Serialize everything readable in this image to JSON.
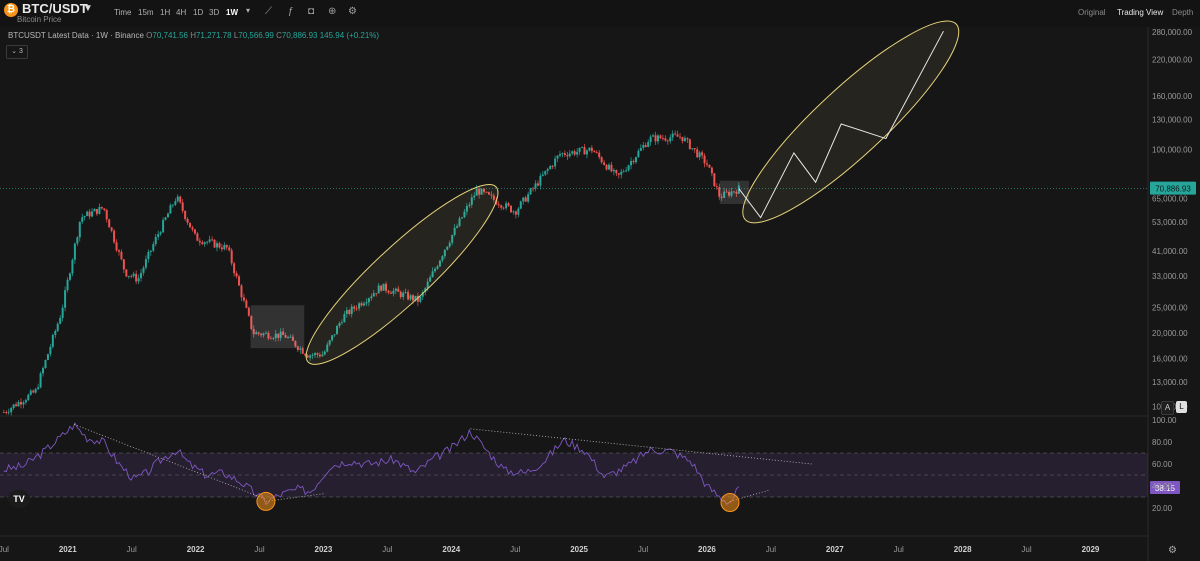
{
  "header": {
    "symbol": "BTC/USDT",
    "subtitle": "Bitcoin Price",
    "timeframes": [
      "Time",
      "15m",
      "1H",
      "4H",
      "1D",
      "3D",
      "1W"
    ],
    "active_timeframe": "1W",
    "views": [
      "Original",
      "Trading View",
      "Depth"
    ],
    "active_view": "Trading View",
    "icons": [
      "chart-type-icon",
      "indicator-icon",
      "screenshot-icon",
      "add-icon",
      "settings-icon"
    ]
  },
  "legend": {
    "label": "BTCUSDT Latest Data · 1W · Binance",
    "open_lbl": "O",
    "open": "70,741.56",
    "high_lbl": "H",
    "high": "71,271.78",
    "low_lbl": "L",
    "low": "70,566.99",
    "close_lbl": "C",
    "close": "70,886.93",
    "change": "145.94 (+0.21%)",
    "collapse_count": "3"
  },
  "chart_data": [
    {
      "type": "candlestick",
      "scale": "log",
      "price_ticks": [
        "280,000.00",
        "220,000.00",
        "160,000.00",
        "130,000.00",
        "100,000.00",
        "65,000.00",
        "53,000.00",
        "41,000.00",
        "33,000.00",
        "25,000.00",
        "20,000.00",
        "16,000.00",
        "13,000.00",
        "10,500.00"
      ],
      "last_price": "70,886.93",
      "series_points": [
        {
          "x": 2020.5,
          "y": 10000
        },
        {
          "x": 2020.75,
          "y": 12000
        },
        {
          "x": 2020.95,
          "y": 24000
        },
        {
          "x": 2021.1,
          "y": 55000
        },
        {
          "x": 2021.28,
          "y": 60000
        },
        {
          "x": 2021.45,
          "y": 34000
        },
        {
          "x": 2021.55,
          "y": 32000
        },
        {
          "x": 2021.7,
          "y": 47000
        },
        {
          "x": 2021.85,
          "y": 66000
        },
        {
          "x": 2022.0,
          "y": 46000
        },
        {
          "x": 2022.25,
          "y": 42000
        },
        {
          "x": 2022.45,
          "y": 20000
        },
        {
          "x": 2022.7,
          "y": 19500
        },
        {
          "x": 2022.88,
          "y": 16500
        },
        {
          "x": 2023.0,
          "y": 16600
        },
        {
          "x": 2023.15,
          "y": 23000
        },
        {
          "x": 2023.45,
          "y": 30000
        },
        {
          "x": 2023.75,
          "y": 26500
        },
        {
          "x": 2023.95,
          "y": 42000
        },
        {
          "x": 2024.2,
          "y": 70000
        },
        {
          "x": 2024.5,
          "y": 58000
        },
        {
          "x": 2024.85,
          "y": 96000
        },
        {
          "x": 2025.1,
          "y": 100000
        },
        {
          "x": 2025.3,
          "y": 78000
        },
        {
          "x": 2025.55,
          "y": 110000
        },
        {
          "x": 2025.8,
          "y": 112000
        },
        {
          "x": 2026.0,
          "y": 88000
        },
        {
          "x": 2026.1,
          "y": 66000
        },
        {
          "x": 2026.25,
          "y": 70886.93
        }
      ],
      "projection_points": [
        {
          "x": 2026.25,
          "y": 70886.93
        },
        {
          "x": 2026.42,
          "y": 55000
        },
        {
          "x": 2026.68,
          "y": 97000
        },
        {
          "x": 2026.85,
          "y": 75000
        },
        {
          "x": 2027.05,
          "y": 125000
        },
        {
          "x": 2027.4,
          "y": 110000
        },
        {
          "x": 2027.85,
          "y": 282000
        }
      ]
    },
    {
      "type": "line",
      "indicator": "RSI",
      "ylim": [
        0,
        100
      ],
      "y_ticks": [
        "100.00",
        "80.00",
        "60.00",
        "40.00",
        "20.00"
      ],
      "band": [
        30,
        70
      ],
      "last_value": "38.15",
      "points": [
        {
          "x": 2020.5,
          "y": 55
        },
        {
          "x": 2020.65,
          "y": 58
        },
        {
          "x": 2020.8,
          "y": 70
        },
        {
          "x": 2020.95,
          "y": 85
        },
        {
          "x": 2021.05,
          "y": 96
        },
        {
          "x": 2021.15,
          "y": 84
        },
        {
          "x": 2021.28,
          "y": 80
        },
        {
          "x": 2021.4,
          "y": 60
        },
        {
          "x": 2021.52,
          "y": 46
        },
        {
          "x": 2021.62,
          "y": 52
        },
        {
          "x": 2021.72,
          "y": 63
        },
        {
          "x": 2021.85,
          "y": 73
        },
        {
          "x": 2021.95,
          "y": 60
        },
        {
          "x": 2022.08,
          "y": 50
        },
        {
          "x": 2022.22,
          "y": 52
        },
        {
          "x": 2022.35,
          "y": 44
        },
        {
          "x": 2022.48,
          "y": 32
        },
        {
          "x": 2022.55,
          "y": 26
        },
        {
          "x": 2022.68,
          "y": 33
        },
        {
          "x": 2022.8,
          "y": 37
        },
        {
          "x": 2022.9,
          "y": 35
        },
        {
          "x": 2023.05,
          "y": 58
        },
        {
          "x": 2023.2,
          "y": 63
        },
        {
          "x": 2023.35,
          "y": 60
        },
        {
          "x": 2023.55,
          "y": 64
        },
        {
          "x": 2023.72,
          "y": 52
        },
        {
          "x": 2023.85,
          "y": 64
        },
        {
          "x": 2024.0,
          "y": 74
        },
        {
          "x": 2024.15,
          "y": 90
        },
        {
          "x": 2024.28,
          "y": 72
        },
        {
          "x": 2024.42,
          "y": 54
        },
        {
          "x": 2024.58,
          "y": 52
        },
        {
          "x": 2024.72,
          "y": 62
        },
        {
          "x": 2024.88,
          "y": 82
        },
        {
          "x": 2025.05,
          "y": 72
        },
        {
          "x": 2025.2,
          "y": 48
        },
        {
          "x": 2025.38,
          "y": 58
        },
        {
          "x": 2025.55,
          "y": 73
        },
        {
          "x": 2025.72,
          "y": 72
        },
        {
          "x": 2025.88,
          "y": 62
        },
        {
          "x": 2026.0,
          "y": 40
        },
        {
          "x": 2026.1,
          "y": 30
        },
        {
          "x": 2026.18,
          "y": 25
        },
        {
          "x": 2026.25,
          "y": 38.15
        }
      ]
    }
  ],
  "time_axis": [
    "Jul",
    "2021",
    "Jul",
    "2022",
    "Jul",
    "2023",
    "Jul",
    "2024",
    "Jul",
    "2025",
    "Jul",
    "2026",
    "Jul",
    "2027",
    "Jul",
    "2028",
    "Jul",
    "2029"
  ],
  "scale_buttons": [
    "A",
    "L"
  ],
  "logo": "TV",
  "colors": {
    "up": "#26a69a",
    "down": "#ef5350",
    "rsi": "#7e57c2",
    "highlight": "#e6d27a",
    "background": "#161616"
  }
}
